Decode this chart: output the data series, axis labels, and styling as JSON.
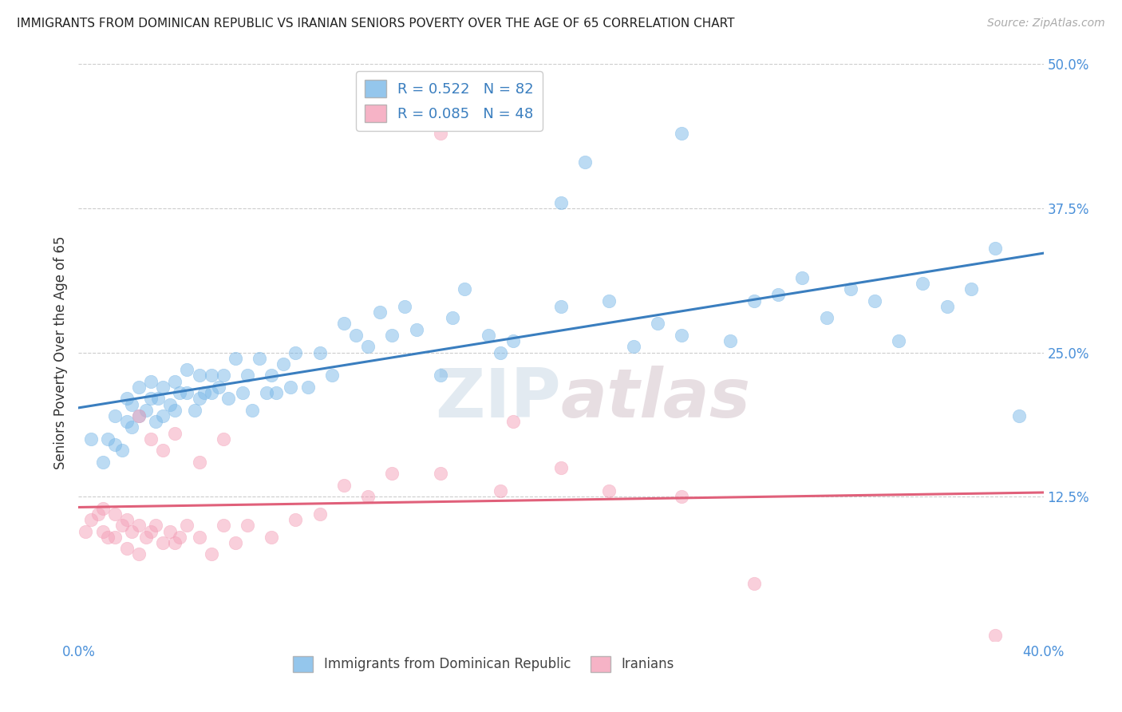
{
  "title": "IMMIGRANTS FROM DOMINICAN REPUBLIC VS IRANIAN SENIORS POVERTY OVER THE AGE OF 65 CORRELATION CHART",
  "source": "Source: ZipAtlas.com",
  "ylabel": "Seniors Poverty Over the Age of 65",
  "xlim": [
    0.0,
    0.4
  ],
  "ylim": [
    0.0,
    0.5
  ],
  "xtick_vals": [
    0.0,
    0.1,
    0.2,
    0.3,
    0.4
  ],
  "xtick_labels": [
    "0.0%",
    "",
    "",
    "",
    "40.0%"
  ],
  "ytick_vals_right": [
    0.5,
    0.375,
    0.25,
    0.125
  ],
  "ytick_labels_right": [
    "50.0%",
    "37.5%",
    "25.0%",
    "12.5%"
  ],
  "blue_R": 0.522,
  "blue_N": 82,
  "pink_R": 0.085,
  "pink_N": 48,
  "blue_color": "#7ab8e8",
  "pink_color": "#f4a0b8",
  "blue_line_color": "#3a7ebf",
  "pink_line_color": "#e0607a",
  "blue_scatter_x": [
    0.005,
    0.01,
    0.012,
    0.015,
    0.015,
    0.018,
    0.02,
    0.02,
    0.022,
    0.022,
    0.025,
    0.025,
    0.028,
    0.03,
    0.03,
    0.032,
    0.033,
    0.035,
    0.035,
    0.038,
    0.04,
    0.04,
    0.042,
    0.045,
    0.045,
    0.048,
    0.05,
    0.05,
    0.052,
    0.055,
    0.055,
    0.058,
    0.06,
    0.062,
    0.065,
    0.068,
    0.07,
    0.072,
    0.075,
    0.078,
    0.08,
    0.082,
    0.085,
    0.088,
    0.09,
    0.095,
    0.1,
    0.105,
    0.11,
    0.115,
    0.12,
    0.125,
    0.13,
    0.135,
    0.14,
    0.15,
    0.155,
    0.16,
    0.17,
    0.175,
    0.18,
    0.2,
    0.21,
    0.22,
    0.23,
    0.24,
    0.25,
    0.27,
    0.28,
    0.29,
    0.3,
    0.31,
    0.32,
    0.33,
    0.34,
    0.35,
    0.36,
    0.37,
    0.38,
    0.39,
    0.25,
    0.2
  ],
  "blue_scatter_y": [
    0.175,
    0.155,
    0.175,
    0.17,
    0.195,
    0.165,
    0.19,
    0.21,
    0.185,
    0.205,
    0.195,
    0.22,
    0.2,
    0.21,
    0.225,
    0.19,
    0.21,
    0.195,
    0.22,
    0.205,
    0.2,
    0.225,
    0.215,
    0.215,
    0.235,
    0.2,
    0.21,
    0.23,
    0.215,
    0.215,
    0.23,
    0.22,
    0.23,
    0.21,
    0.245,
    0.215,
    0.23,
    0.2,
    0.245,
    0.215,
    0.23,
    0.215,
    0.24,
    0.22,
    0.25,
    0.22,
    0.25,
    0.23,
    0.275,
    0.265,
    0.255,
    0.285,
    0.265,
    0.29,
    0.27,
    0.23,
    0.28,
    0.305,
    0.265,
    0.25,
    0.26,
    0.29,
    0.415,
    0.295,
    0.255,
    0.275,
    0.265,
    0.26,
    0.295,
    0.3,
    0.315,
    0.28,
    0.305,
    0.295,
    0.26,
    0.31,
    0.29,
    0.305,
    0.34,
    0.195,
    0.44,
    0.38
  ],
  "pink_scatter_x": [
    0.003,
    0.005,
    0.008,
    0.01,
    0.01,
    0.012,
    0.015,
    0.015,
    0.018,
    0.02,
    0.02,
    0.022,
    0.025,
    0.025,
    0.028,
    0.03,
    0.032,
    0.035,
    0.038,
    0.04,
    0.042,
    0.045,
    0.05,
    0.055,
    0.06,
    0.065,
    0.07,
    0.08,
    0.09,
    0.1,
    0.11,
    0.12,
    0.13,
    0.15,
    0.175,
    0.2,
    0.22,
    0.25,
    0.28,
    0.15,
    0.025,
    0.03,
    0.035,
    0.04,
    0.05,
    0.06,
    0.38,
    0.18
  ],
  "pink_scatter_y": [
    0.095,
    0.105,
    0.11,
    0.115,
    0.095,
    0.09,
    0.11,
    0.09,
    0.1,
    0.105,
    0.08,
    0.095,
    0.1,
    0.075,
    0.09,
    0.095,
    0.1,
    0.085,
    0.095,
    0.085,
    0.09,
    0.1,
    0.09,
    0.075,
    0.1,
    0.085,
    0.1,
    0.09,
    0.105,
    0.11,
    0.135,
    0.125,
    0.145,
    0.145,
    0.13,
    0.15,
    0.13,
    0.125,
    0.05,
    0.44,
    0.195,
    0.175,
    0.165,
    0.18,
    0.155,
    0.175,
    0.005,
    0.19
  ]
}
